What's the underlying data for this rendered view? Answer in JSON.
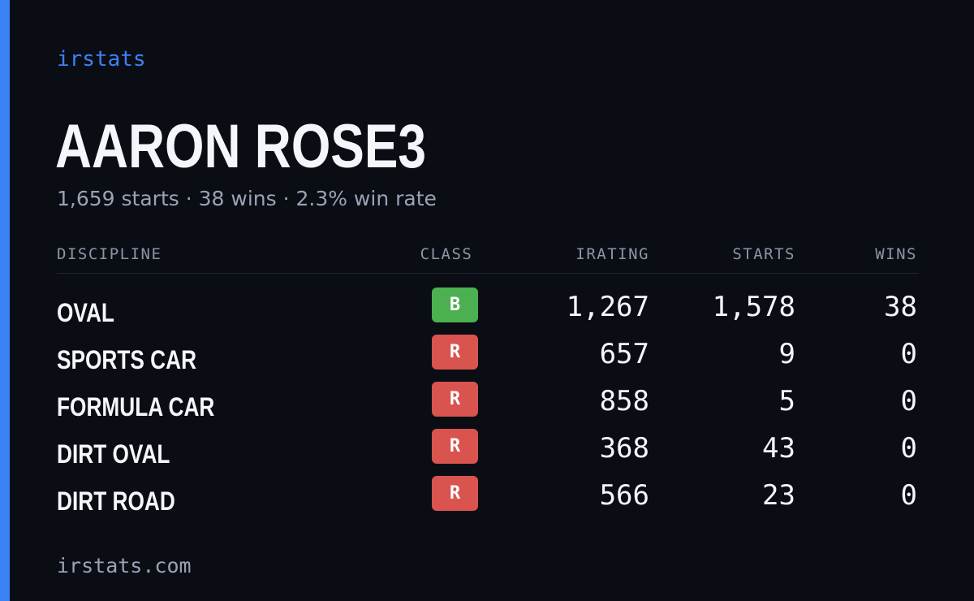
{
  "brand": "irstats",
  "driver": {
    "name": "AARON ROSE3",
    "summary": "1,659 starts · 38 wins · 2.3% win rate"
  },
  "table": {
    "headers": {
      "discipline": "DISCIPLINE",
      "class": "CLASS",
      "irating": "IRATING",
      "starts": "STARTS",
      "wins": "WINS"
    },
    "rows": [
      {
        "discipline": "OVAL",
        "class": "B",
        "class_color": "#4caf50",
        "irating": "1,267",
        "starts": "1,578",
        "wins": "38"
      },
      {
        "discipline": "SPORTS CAR",
        "class": "R",
        "class_color": "#d9534f",
        "irating": "657",
        "starts": "9",
        "wins": "0"
      },
      {
        "discipline": "FORMULA CAR",
        "class": "R",
        "class_color": "#d9534f",
        "irating": "858",
        "starts": "5",
        "wins": "0"
      },
      {
        "discipline": "DIRT OVAL",
        "class": "R",
        "class_color": "#d9534f",
        "irating": "368",
        "starts": "43",
        "wins": "0"
      },
      {
        "discipline": "DIRT ROAD",
        "class": "R",
        "class_color": "#d9534f",
        "irating": "566",
        "starts": "23",
        "wins": "0"
      }
    ]
  },
  "footer": "irstats.com",
  "colors": {
    "background": "#0b0d14",
    "accent": "#3b82f6",
    "text": "#f4f6fb",
    "muted": "#9aa3b5"
  }
}
